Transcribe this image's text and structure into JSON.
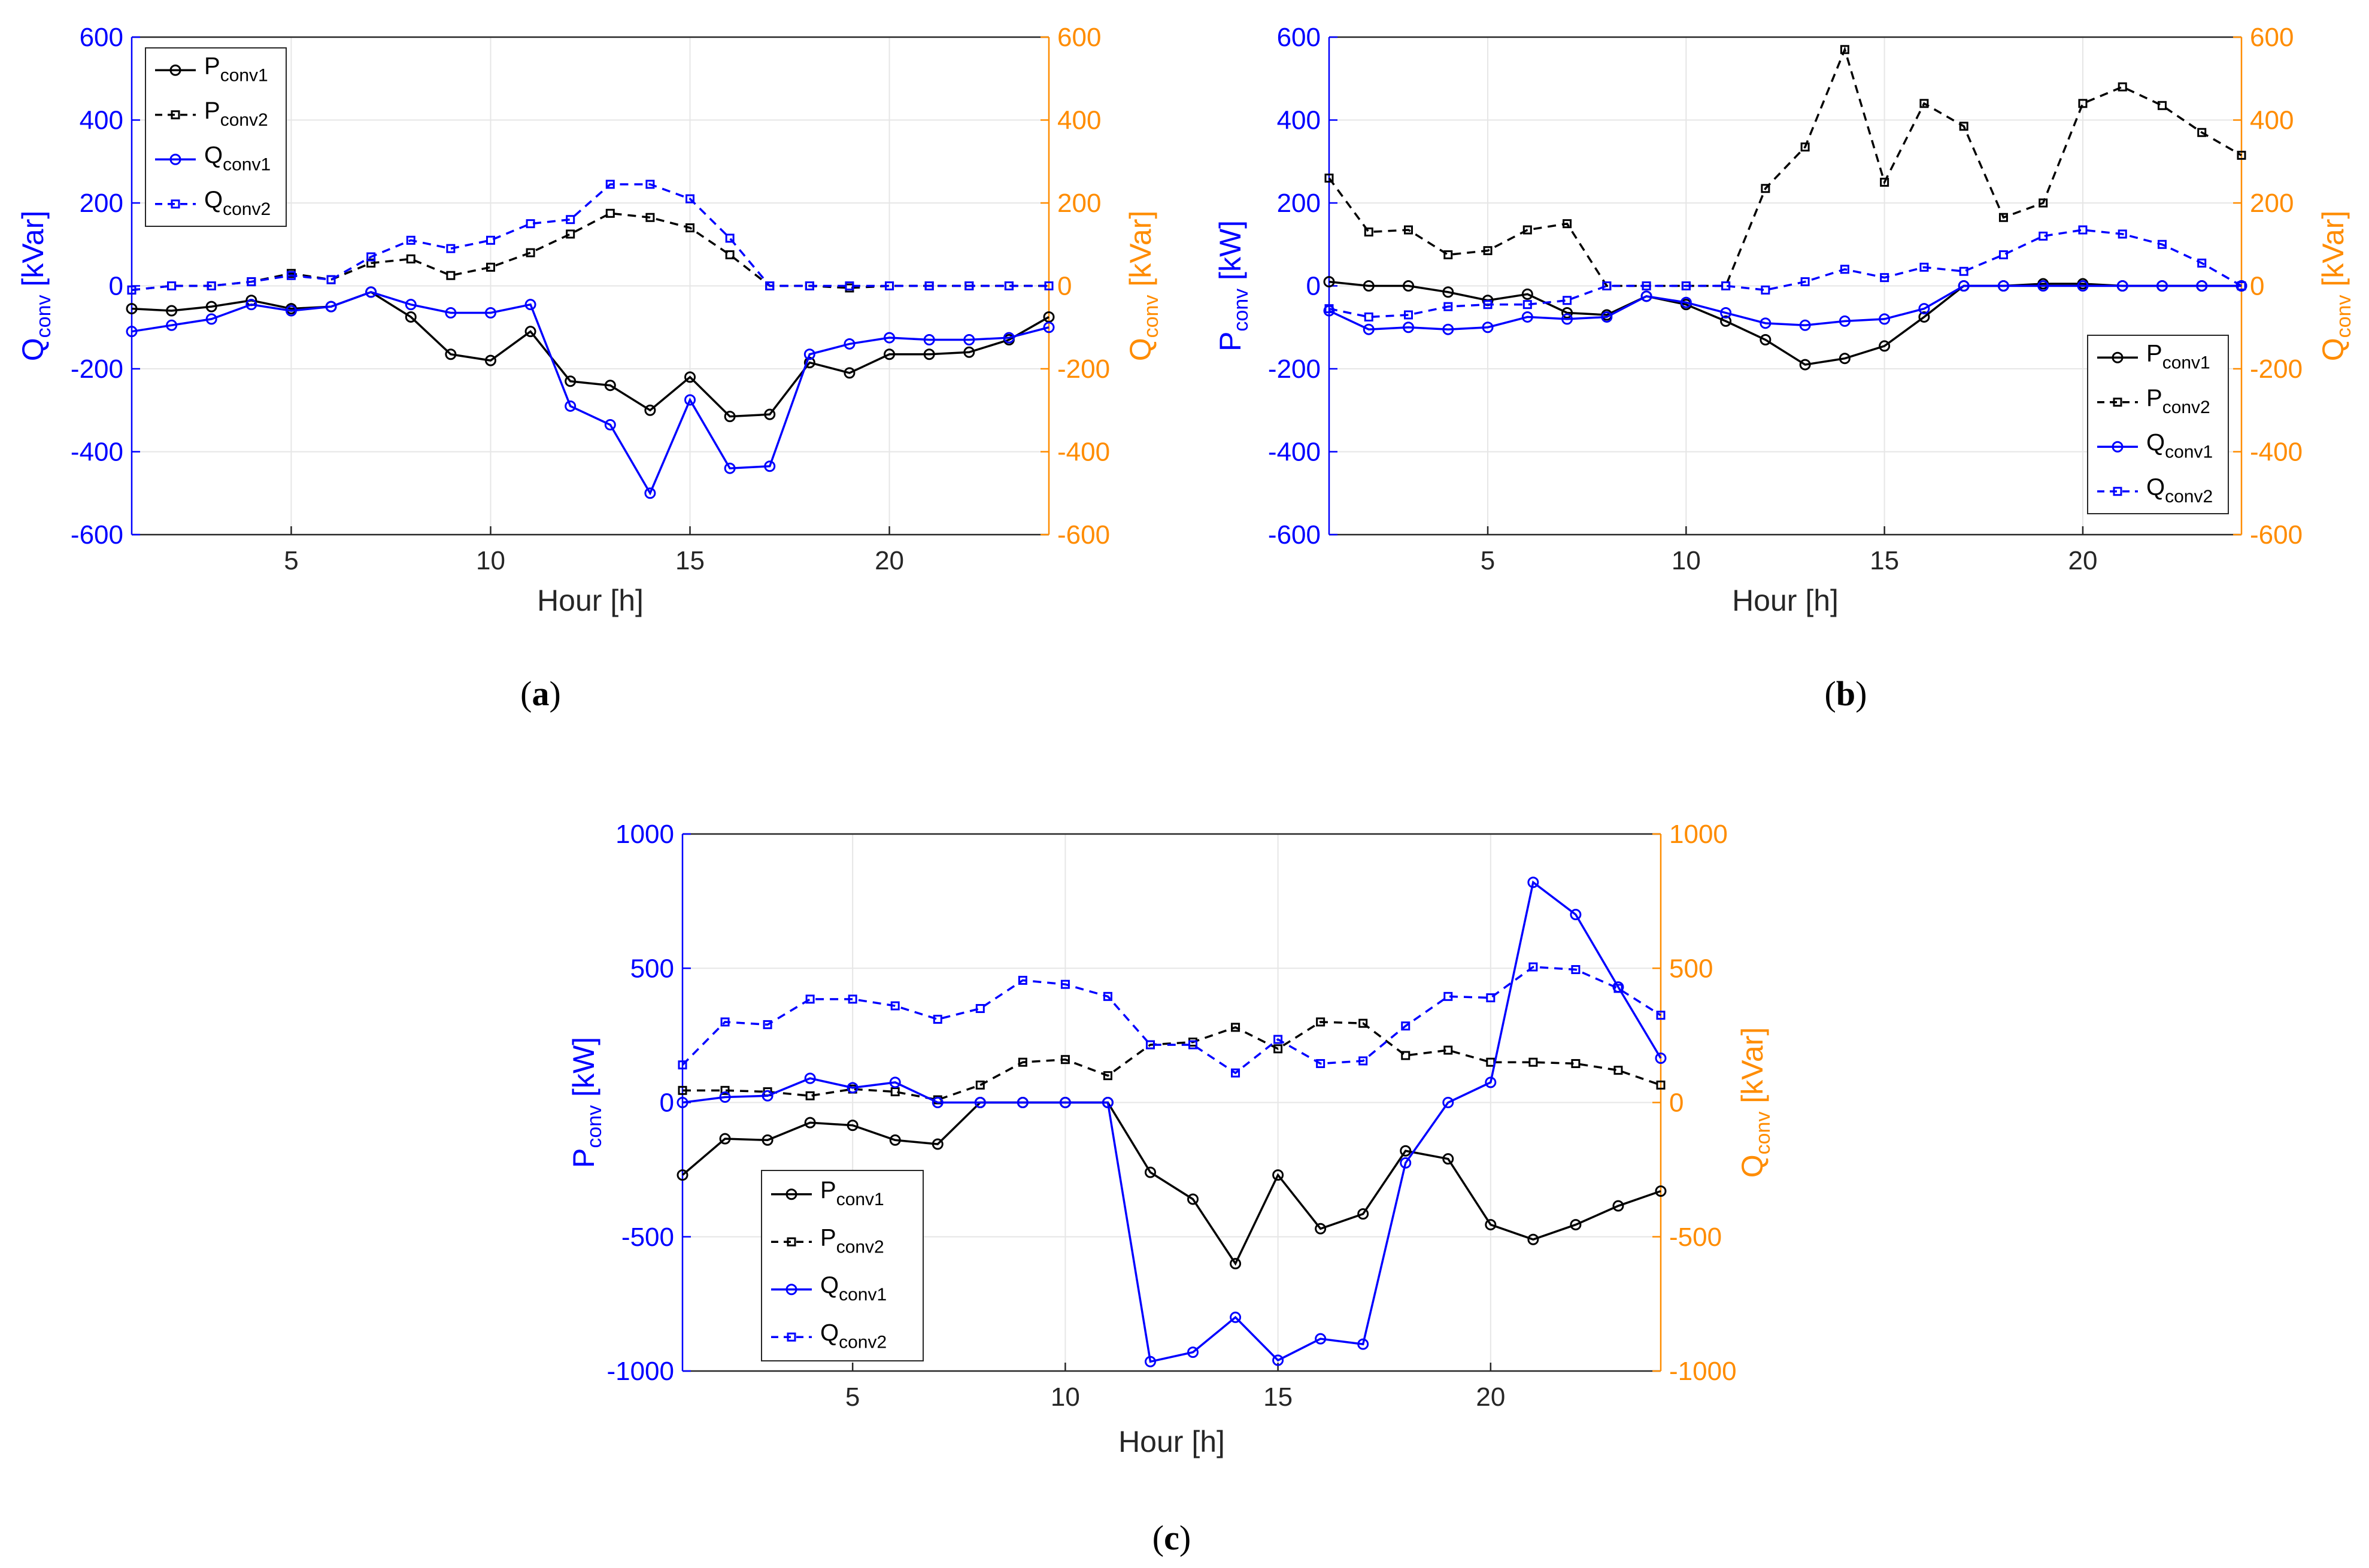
{
  "colors": {
    "left_axis": "#0000ff",
    "right_axis": "#ff8c00",
    "p_series": "#000000",
    "q_series": "#0000ff",
    "grid": "#e6e6e6"
  },
  "legend_labels": {
    "p1_main": "P",
    "p1_sub": "conv1",
    "p2_main": "P",
    "p2_sub": "conv2",
    "q1_main": "Q",
    "q1_sub": "conv1",
    "q2_main": "Q",
    "q2_sub": "conv2"
  },
  "chart_data": [
    {
      "id": "a",
      "type": "line",
      "caption": "a",
      "xlabel": "Hour [h]",
      "ylabel_left": {
        "main": "Q",
        "sub": "conv",
        "unit": " [kVar]"
      },
      "ylabel_right": {
        "main": "Q",
        "sub": "conv",
        "unit": " [kVar]"
      },
      "xlim": [
        1,
        24
      ],
      "xticks": [
        5,
        10,
        15,
        20
      ],
      "ylim": [
        -600,
        600
      ],
      "yticks": [
        -600,
        -400,
        -200,
        0,
        200,
        400,
        600
      ],
      "legend_position": "top-left",
      "x": [
        1,
        2,
        3,
        4,
        5,
        6,
        7,
        8,
        9,
        10,
        11,
        12,
        13,
        14,
        15,
        16,
        17,
        18,
        19,
        20,
        21,
        22,
        23,
        24
      ],
      "series": [
        {
          "key": "p1",
          "name": "Pconv1",
          "style": "solid",
          "marker": "circle",
          "color": "#000000",
          "values": [
            -55,
            -60,
            -50,
            -35,
            -55,
            -50,
            -15,
            -75,
            -165,
            -180,
            -110,
            -230,
            -240,
            -300,
            -220,
            -315,
            -310,
            -185,
            -210,
            -165,
            -165,
            -160,
            -130,
            -75
          ]
        },
        {
          "key": "p2",
          "name": "Pconv2",
          "style": "dashed",
          "marker": "square",
          "color": "#000000",
          "values": [
            -10,
            0,
            0,
            10,
            30,
            15,
            55,
            65,
            25,
            45,
            80,
            125,
            175,
            165,
            140,
            75,
            0,
            0,
            -5,
            0,
            0,
            0,
            0,
            0
          ]
        },
        {
          "key": "q1",
          "name": "Qconv1",
          "style": "solid",
          "marker": "circle",
          "color": "#0000ff",
          "values": [
            -110,
            -95,
            -80,
            -45,
            -60,
            -50,
            -15,
            -45,
            -65,
            -65,
            -45,
            -290,
            -335,
            -500,
            -275,
            -440,
            -435,
            -165,
            -140,
            -125,
            -130,
            -130,
            -125,
            -100
          ]
        },
        {
          "key": "q2",
          "name": "Qconv2",
          "style": "dashed",
          "marker": "square",
          "color": "#0000ff",
          "values": [
            -10,
            0,
            0,
            10,
            25,
            15,
            70,
            110,
            90,
            110,
            150,
            160,
            245,
            245,
            210,
            115,
            0,
            0,
            0,
            0,
            0,
            0,
            0,
            0
          ]
        }
      ]
    },
    {
      "id": "b",
      "type": "line",
      "caption": "b",
      "xlabel": "Hour [h]",
      "ylabel_left": {
        "main": "P",
        "sub": "conv",
        "unit": " [kW]"
      },
      "ylabel_right": {
        "main": "Q",
        "sub": "conv",
        "unit": " [kVar]"
      },
      "xlim": [
        1,
        24
      ],
      "xticks": [
        5,
        10,
        15,
        20
      ],
      "ylim": [
        -600,
        600
      ],
      "yticks": [
        -600,
        -400,
        -200,
        0,
        200,
        400,
        600
      ],
      "legend_position": "bottom-right",
      "x": [
        1,
        2,
        3,
        4,
        5,
        6,
        7,
        8,
        9,
        10,
        11,
        12,
        13,
        14,
        15,
        16,
        17,
        18,
        19,
        20,
        21,
        22,
        23,
        24
      ],
      "series": [
        {
          "key": "p1",
          "name": "Pconv1",
          "style": "solid",
          "marker": "circle",
          "color": "#000000",
          "values": [
            10,
            0,
            0,
            -15,
            -35,
            -20,
            -65,
            -70,
            -25,
            -45,
            -85,
            -130,
            -190,
            -175,
            -145,
            -75,
            0,
            0,
            5,
            5,
            0,
            0,
            0,
            0
          ]
        },
        {
          "key": "p2",
          "name": "Pconv2",
          "style": "dashed",
          "marker": "square",
          "color": "#000000",
          "values": [
            260,
            130,
            135,
            75,
            85,
            135,
            150,
            0,
            0,
            0,
            0,
            235,
            335,
            570,
            250,
            440,
            385,
            165,
            200,
            440,
            480,
            435,
            370,
            315
          ]
        },
        {
          "key": "q1",
          "name": "Qconv1",
          "style": "solid",
          "marker": "circle",
          "color": "#0000ff",
          "values": [
            -60,
            -105,
            -100,
            -105,
            -100,
            -75,
            -80,
            -75,
            -25,
            -40,
            -65,
            -90,
            -95,
            -85,
            -80,
            -55,
            0,
            0,
            0,
            0,
            0,
            0,
            0,
            0
          ]
        },
        {
          "key": "q2",
          "name": "Qconv2",
          "style": "dashed",
          "marker": "square",
          "color": "#0000ff",
          "values": [
            -55,
            -75,
            -70,
            -50,
            -45,
            -45,
            -35,
            0,
            0,
            0,
            0,
            -10,
            10,
            40,
            20,
            45,
            35,
            75,
            120,
            135,
            125,
            100,
            55,
            0
          ]
        }
      ]
    },
    {
      "id": "c",
      "type": "line",
      "caption": "c",
      "xlabel": "Hour [h]",
      "ylabel_left": {
        "main": "P",
        "sub": "conv",
        "unit": " [kW]"
      },
      "ylabel_right": {
        "main": "Q",
        "sub": "conv",
        "unit": " [kVar]"
      },
      "xlim": [
        1,
        24
      ],
      "xticks": [
        5,
        10,
        15,
        20
      ],
      "ylim": [
        -1000,
        1000
      ],
      "yticks": [
        -1000,
        -500,
        0,
        500,
        1000
      ],
      "legend_position": "bottom-left",
      "x": [
        1,
        2,
        3,
        4,
        5,
        6,
        7,
        8,
        9,
        10,
        11,
        12,
        13,
        14,
        15,
        16,
        17,
        18,
        19,
        20,
        21,
        22,
        23,
        24
      ],
      "series": [
        {
          "key": "p1",
          "name": "Pconv1",
          "style": "solid",
          "marker": "circle",
          "color": "#000000",
          "values": [
            -270,
            -135,
            -140,
            -75,
            -85,
            -140,
            -155,
            0,
            0,
            0,
            0,
            -260,
            -360,
            -600,
            -270,
            -470,
            -415,
            -180,
            -210,
            -455,
            -510,
            -455,
            -385,
            -330
          ]
        },
        {
          "key": "p2",
          "name": "Pconv2",
          "style": "dashed",
          "marker": "square",
          "color": "#000000",
          "values": [
            45,
            45,
            40,
            25,
            50,
            40,
            10,
            65,
            150,
            160,
            100,
            215,
            225,
            280,
            200,
            300,
            295,
            175,
            195,
            150,
            150,
            145,
            120,
            65
          ]
        },
        {
          "key": "q1",
          "name": "Qconv1",
          "style": "solid",
          "marker": "circle",
          "color": "#0000ff",
          "values": [
            0,
            20,
            25,
            90,
            55,
            75,
            0,
            0,
            0,
            0,
            0,
            -965,
            -930,
            -800,
            -960,
            -880,
            -900,
            -225,
            0,
            75,
            820,
            700,
            430,
            165
          ]
        },
        {
          "key": "q2",
          "name": "Qconv2",
          "style": "dashed",
          "marker": "square",
          "color": "#0000ff",
          "values": [
            140,
            300,
            290,
            385,
            385,
            360,
            310,
            350,
            455,
            440,
            395,
            215,
            215,
            110,
            235,
            145,
            155,
            285,
            395,
            390,
            505,
            495,
            425,
            325
          ]
        }
      ]
    }
  ]
}
